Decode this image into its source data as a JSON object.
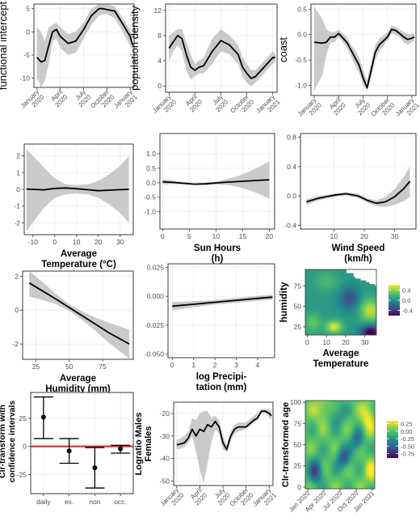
{
  "chart_data": [
    {
      "type": "line",
      "ylabel": "functional intercept",
      "ylim": [
        -12,
        6
      ],
      "y_ticks": [
        -10,
        -5,
        0,
        5
      ],
      "x_ticks": [
        "January 2020",
        "April 2020",
        "July 2020",
        "October 2020",
        "January 2021"
      ],
      "x_tick_pos": [
        0,
        3,
        6,
        9,
        12
      ],
      "grid": true,
      "x": [
        0,
        0.5,
        1,
        1.5,
        2,
        2.5,
        3,
        4,
        5,
        6,
        7,
        8,
        8.5,
        9,
        10,
        11,
        12,
        12.3
      ],
      "y": [
        -5.5,
        -6.5,
        -6.2,
        -3,
        0,
        0.5,
        -1,
        -2.5,
        -2,
        0.5,
        3.5,
        5,
        5,
        4.8,
        4.5,
        1.8,
        -1,
        -2.8
      ],
      "lower": [
        -10,
        -12,
        -10.5,
        -7,
        -2,
        -1.5,
        -3.5,
        -5,
        -4.5,
        -1.5,
        1.5,
        3.5,
        3.8,
        3.8,
        3,
        0,
        -3,
        -4
      ],
      "upper": [
        1,
        0,
        -2,
        1,
        1.5,
        2,
        1,
        -0.5,
        0,
        2,
        5,
        6,
        6,
        6,
        5.5,
        3,
        0.5,
        -1.5
      ]
    },
    {
      "type": "line",
      "ylabel": "population density",
      "ylim": [
        -1,
        13
      ],
      "y_ticks": [
        0,
        4,
        8,
        12
      ],
      "x_ticks": [
        "January 2020",
        "April 2020",
        "July 2020",
        "October 2020",
        "January 2021"
      ],
      "x_tick_pos": [
        0,
        3,
        6,
        9,
        12
      ],
      "grid": true,
      "x": [
        0,
        0.5,
        1,
        1.5,
        2,
        2.5,
        3,
        3.5,
        4,
        5,
        6,
        7,
        8,
        8.5,
        9,
        9.5,
        10,
        11,
        12,
        12.3
      ],
      "y": [
        6,
        7,
        8,
        7.5,
        5,
        3,
        2.5,
        3,
        3.2,
        5.5,
        7.2,
        6.5,
        5,
        3,
        2,
        1.2,
        1.5,
        3,
        4.5,
        4.5
      ],
      "lower": [
        4,
        5.5,
        6.5,
        5.5,
        2.5,
        1,
        1.5,
        2,
        2,
        3.5,
        5.5,
        5,
        3.5,
        1.5,
        0.5,
        0,
        0.5,
        2,
        3.5,
        3.8
      ],
      "upper": [
        8,
        8.5,
        9,
        9,
        7,
        5,
        3.5,
        4,
        4.5,
        7.5,
        9,
        8,
        6.5,
        4.5,
        3.5,
        2.5,
        2.5,
        4,
        5.5,
        5
      ]
    },
    {
      "type": "line",
      "ylabel": "coast",
      "ylim": [
        -1.2,
        0.6
      ],
      "y_ticks": [
        -1.0,
        -0.5,
        0.0,
        0.5
      ],
      "y_tick_labels": [
        "-1.0",
        "-0.5",
        "0.0",
        "0.5"
      ],
      "x_ticks": [
        "January 2020",
        "April 2020",
        "July 2020",
        "October 2020",
        "January 2021"
      ],
      "x_tick_pos": [
        0,
        3,
        6,
        9,
        12
      ],
      "grid": true,
      "x": [
        0,
        1,
        1.5,
        2,
        2.5,
        3,
        4,
        4.5,
        5,
        5.5,
        6,
        6.5,
        7,
        7.5,
        8,
        9,
        9.5,
        10,
        10.5,
        11,
        11.5,
        12,
        12.3
      ],
      "y": [
        -0.15,
        -0.17,
        -0.15,
        -0.05,
        -0.05,
        0.02,
        -0.15,
        -0.3,
        -0.45,
        -0.6,
        -0.85,
        -1.05,
        -0.7,
        -0.35,
        -0.2,
        -0.05,
        0.1,
        0.08,
        0.02,
        -0.05,
        -0.1,
        -0.07,
        -0.05
      ],
      "lower": [
        -1.1,
        -0.8,
        -0.4,
        -0.15,
        -0.15,
        -0.05,
        -0.25,
        -0.42,
        -0.6,
        -0.75,
        -1,
        -1.1,
        -0.85,
        -0.5,
        -0.32,
        -0.12,
        0.02,
        0,
        -0.05,
        -0.15,
        -0.2,
        -0.15,
        -0.12
      ],
      "upper": [
        0.55,
        0.3,
        0.1,
        0.05,
        0.05,
        0.1,
        -0.05,
        -0.2,
        -0.3,
        -0.45,
        -0.7,
        -0.9,
        -0.55,
        -0.2,
        -0.08,
        0.05,
        0.18,
        0.15,
        0.1,
        0.05,
        0,
        0.02,
        0.02
      ]
    },
    {
      "type": "line",
      "xlabel": "Average Temperature (°C)",
      "xlabel_lines": [
        "Average",
        "Temperature (°C)"
      ],
      "ylim": [
        -2.7,
        2.7
      ],
      "xlim": [
        -14,
        36
      ],
      "y_ticks": [
        -2,
        -1,
        0,
        1,
        2
      ],
      "x_ticks": [
        -10,
        0,
        10,
        20,
        30
      ],
      "grid": true,
      "x": [
        -13,
        -5,
        0,
        5,
        10,
        15,
        20,
        25,
        30,
        34
      ],
      "y": [
        0.02,
        -0.03,
        0.06,
        0.08,
        0.04,
        -0.02,
        -0.08,
        -0.05,
        -0.02,
        0.0
      ],
      "lower": [
        -2.5,
        -1.1,
        -0.5,
        -0.3,
        -0.25,
        -0.3,
        -0.5,
        -0.9,
        -1.4,
        -2.0
      ],
      "upper": [
        2.4,
        1.3,
        0.65,
        0.3,
        0.25,
        0.3,
        0.5,
        0.9,
        1.4,
        2.0
      ]
    },
    {
      "type": "line",
      "xlabel": "Sun Hours (h)",
      "xlabel_lines": [
        "Sun Hours",
        "(h)"
      ],
      "ylim": [
        -1.6,
        1.7
      ],
      "xlim": [
        -0.5,
        21
      ],
      "y_ticks": [
        -1.0,
        -0.5,
        0.0,
        0.5,
        1.0
      ],
      "y_tick_labels": [
        "-1.0",
        "-0.5",
        "0.0",
        "0.5",
        "1.0"
      ],
      "x_ticks": [
        0,
        5,
        10,
        15,
        20
      ],
      "grid": true,
      "x": [
        0,
        2,
        4,
        6,
        8,
        10,
        12,
        14,
        16,
        18,
        20
      ],
      "y": [
        0.03,
        0.01,
        -0.02,
        -0.05,
        -0.04,
        -0.01,
        0.02,
        0.04,
        0.06,
        0.08,
        0.1
      ],
      "lower": [
        -0.06,
        -0.05,
        -0.06,
        -0.08,
        -0.08,
        -0.06,
        -0.08,
        -0.14,
        -0.24,
        -0.38,
        -0.55
      ],
      "upper": [
        0.12,
        0.07,
        0.02,
        -0.02,
        0.0,
        0.04,
        0.12,
        0.22,
        0.36,
        0.54,
        0.75
      ]
    },
    {
      "type": "line",
      "xlabel": "Wind Speed (km/h)",
      "xlabel_lines": [
        "Wind Speed",
        "(km/h)"
      ],
      "ylim": [
        -0.45,
        0.85
      ],
      "xlim": [
        -1,
        37
      ],
      "y_ticks": [
        -0.4,
        0.0,
        0.4,
        0.8
      ],
      "y_tick_labels": [
        "-0.4",
        "0.0",
        "0.4",
        "0.8"
      ],
      "x_ticks": [
        10,
        20,
        30
      ],
      "grid": true,
      "x": [
        1,
        5,
        10,
        14,
        18,
        21,
        24,
        27,
        30,
        33,
        35
      ],
      "y": [
        -0.08,
        -0.03,
        0.01,
        0.03,
        0.0,
        -0.06,
        -0.1,
        -0.08,
        -0.01,
        0.1,
        0.2
      ],
      "lower": [
        -0.12,
        -0.06,
        -0.01,
        0.01,
        -0.03,
        -0.09,
        -0.14,
        -0.15,
        -0.12,
        -0.07,
        -0.01
      ],
      "upper": [
        -0.04,
        0.0,
        0.03,
        0.05,
        0.03,
        -0.03,
        -0.06,
        -0.01,
        0.1,
        0.26,
        0.4
      ]
    },
    {
      "type": "line",
      "xlabel": "Average Humidity (mm)",
      "xlabel_lines": [
        "Average",
        "Humidity (mm)"
      ],
      "ylim": [
        -2.9,
        2.3
      ],
      "xlim": [
        15,
        98
      ],
      "y_ticks": [
        -2,
        0,
        2
      ],
      "x_ticks": [
        25,
        50,
        75
      ],
      "grid": true,
      "x": [
        20,
        30,
        40,
        50,
        60,
        70,
        80,
        95
      ],
      "y": [
        1.6,
        1.12,
        0.65,
        0.15,
        -0.35,
        -0.85,
        -1.35,
        -2.0
      ],
      "lower": [
        0.8,
        0.6,
        0.35,
        -0.05,
        -0.6,
        -1.25,
        -1.95,
        -2.85
      ],
      "upper": [
        2.3,
        1.65,
        0.95,
        0.35,
        -0.1,
        -0.45,
        -0.75,
        -1.15
      ]
    },
    {
      "type": "line",
      "xlabel": "log Precipi- tation (mm)",
      "xlabel_lines": [
        "log Precipi-",
        "tation (mm)"
      ],
      "ylim": [
        -0.053,
        0.028
      ],
      "xlim": [
        -0.2,
        4.8
      ],
      "y_ticks": [
        -0.05,
        -0.025,
        0.0,
        0.025
      ],
      "y_tick_labels": [
        "-0.050",
        "-0.025",
        "0.000",
        "0.025"
      ],
      "x_ticks": [
        0,
        1,
        2,
        3,
        4
      ],
      "grid": true,
      "x": [
        0,
        1,
        2,
        3,
        4,
        4.7
      ],
      "y": [
        -0.0085,
        -0.0069,
        -0.0052,
        -0.0035,
        -0.0018,
        -0.0008
      ],
      "lower": [
        -0.012,
        -0.0095,
        -0.0072,
        -0.0055,
        -0.004,
        -0.003
      ],
      "upper": [
        -0.005,
        -0.0043,
        -0.0032,
        -0.0015,
        0.0004,
        0.0014
      ]
    },
    {
      "type": "heatmap",
      "xlabel": "Average Temperature",
      "xlabel_lines": [
        "Average",
        "Temperature"
      ],
      "ylabel": "humidity",
      "xlim": [
        -1,
        36
      ],
      "ylim": [
        15,
        95
      ],
      "x_ticks": [
        0,
        10,
        20,
        30
      ],
      "y_ticks": [
        25,
        50,
        75
      ],
      "legend_ticks": [
        0.4,
        0.0,
        -0.4
      ],
      "legend_tick_labels": [
        "0.4",
        "0.0",
        "-0.4"
      ],
      "legend_range": [
        -0.6,
        0.6
      ],
      "legend_placement": "right"
    },
    {
      "type": "errorbar",
      "ylabel": "Clr-transform with confidence intervals",
      "ylabel_lines": [
        "Clr-transform with",
        "confidence intervals"
      ],
      "categories": [
        "daily",
        "ex.",
        "non",
        "occ."
      ],
      "values": [
        26,
        -4,
        -19,
        -2
      ],
      "lower": [
        7,
        -15,
        -37,
        -6
      ],
      "upper": [
        44,
        7,
        -1,
        1
      ],
      "reference_line": 0,
      "ylim": [
        -42,
        48
      ],
      "y_ticks": [
        -25,
        0,
        25
      ],
      "grid": true
    },
    {
      "type": "line",
      "ylabel": "Logratio Males Females",
      "ylabel_lines": [
        "Logratio Males",
        "Females"
      ],
      "ylim": [
        -52,
        -15
      ],
      "y_ticks": [
        -50,
        -40,
        -30,
        -20
      ],
      "x_ticks": [
        "January 2020",
        "April 2020",
        "July 2020",
        "October 2020",
        "January 2021"
      ],
      "x_tick_pos": [
        0,
        3,
        6,
        9,
        12
      ],
      "grid": true,
      "x": [
        0,
        1,
        1.5,
        2,
        2.5,
        3,
        3.5,
        4,
        4.5,
        5,
        5.5,
        6,
        6.5,
        7,
        7.5,
        8,
        9,
        10,
        10.5,
        11,
        11.5,
        12,
        12.3
      ],
      "y": [
        -34,
        -33,
        -31,
        -27,
        -30,
        -27,
        -28,
        -25,
        -26,
        -23.5,
        -26,
        -33,
        -36,
        -30,
        -27,
        -26,
        -26,
        -23,
        -22,
        -19,
        -19,
        -20,
        -21
      ],
      "lower": [
        -36,
        -35,
        -33,
        -30,
        -37,
        -45,
        -51,
        -42,
        -33,
        -27,
        -29,
        -36,
        -37,
        -32,
        -29,
        -28,
        -27,
        -24,
        -23,
        -20,
        -20,
        -21.5,
        -23
      ],
      "upper": [
        -32,
        -30,
        -28,
        -22,
        -23,
        -20,
        -19,
        -19,
        -22,
        -21,
        -23,
        -30,
        -34,
        -28,
        -25,
        -24,
        -24,
        -21,
        -20,
        -18,
        -18,
        -18.5,
        -19
      ]
    },
    {
      "type": "heatmap",
      "ylabel": "Clr-transformed age",
      "x_ticks": [
        "Jan 2020",
        "Apr 2020",
        "Jul 2020",
        "Oct 2020",
        "Jan 2021"
      ],
      "y_ticks": [
        0,
        25,
        50,
        75,
        100
      ],
      "ylim": [
        -2,
        102
      ],
      "legend_ticks": [
        0.25,
        0.0,
        -0.25,
        -0.5,
        -0.75
      ],
      "legend_tick_labels": [
        "0.25",
        "0.00",
        "-0.25",
        "-0.50",
        "-0.75"
      ],
      "legend_range": [
        -0.9,
        0.35
      ],
      "legend_placement": "right"
    }
  ]
}
